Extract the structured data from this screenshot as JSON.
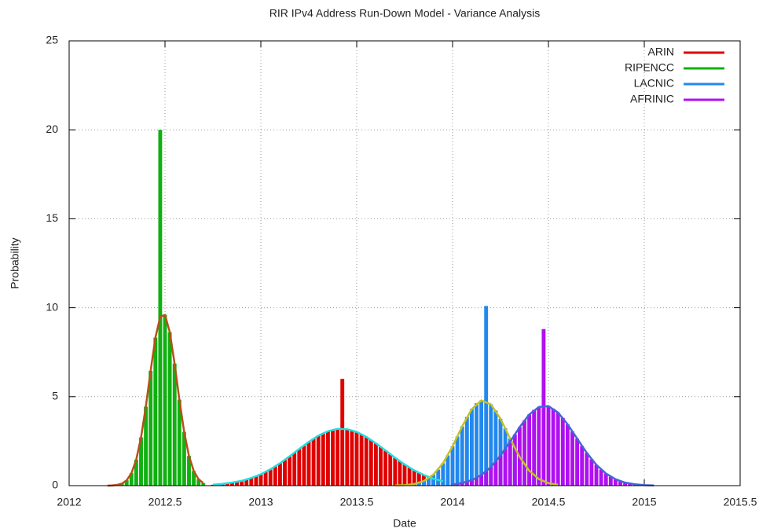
{
  "chart_data": {
    "type": "histogram",
    "title": "RIR IPv4 Address Run-Down Model - Variance Analysis",
    "xlabel": "Date",
    "ylabel": "Probability",
    "xlim": [
      2012,
      2015.5
    ],
    "xticks": [
      2012,
      2012.5,
      2013,
      2013.5,
      2014,
      2014.5,
      2015,
      2015.5
    ],
    "ylim": [
      0,
      25
    ],
    "yticks": [
      0,
      5,
      10,
      15,
      20,
      25
    ],
    "grid": true,
    "legend": "upper right",
    "series": [
      {
        "name": "ARIN",
        "color": "#e00000",
        "x": [
          2012.75,
          2012.775,
          2012.8,
          2012.825,
          2012.85,
          2012.875,
          2012.9,
          2012.925,
          2012.95,
          2012.975,
          2013,
          2013.025,
          2013.05,
          2013.075,
          2013.1,
          2013.125,
          2013.15,
          2013.175,
          2013.2,
          2013.225,
          2013.25,
          2013.275,
          2013.3,
          2013.325,
          2013.35,
          2013.375,
          2013.4,
          2013.425,
          2013.45,
          2013.475,
          2013.5,
          2013.525,
          2013.55,
          2013.575,
          2013.6,
          2013.625,
          2013.65,
          2013.675,
          2013.7,
          2013.725,
          2013.75,
          2013.775,
          2013.8,
          2013.825,
          2013.85,
          2013.875,
          2013.9,
          2013.925,
          2013.95
        ],
        "values": [
          0.05,
          0.07,
          0.1,
          0.13,
          0.17,
          0.22,
          0.27,
          0.35,
          0.43,
          0.53,
          0.64,
          0.77,
          0.92,
          1.08,
          1.26,
          1.45,
          1.65,
          1.85,
          2.06,
          2.26,
          2.46,
          2.64,
          2.81,
          2.95,
          3.06,
          3.14,
          3.19,
          6,
          3.17,
          3.11,
          3.02,
          2.9,
          2.74,
          2.57,
          2.38,
          2.18,
          1.98,
          1.77,
          1.57,
          1.37,
          1.19,
          1.02,
          0.86,
          0.72,
          0.6,
          0.49,
          0.39,
          0.31,
          0.25
        ],
        "fit": {
          "color": "#22dede",
          "x": [
            2012.75,
            2012.8,
            2012.85,
            2012.9,
            2012.95,
            2013,
            2013.05,
            2013.1,
            2013.15,
            2013.2,
            2013.25,
            2013.3,
            2013.35,
            2013.4,
            2013.45,
            2013.5,
            2013.55,
            2013.6,
            2013.65,
            2013.7,
            2013.75,
            2013.8,
            2013.85,
            2013.9,
            2013.95
          ],
          "values": [
            0.05,
            0.1,
            0.17,
            0.27,
            0.43,
            0.64,
            0.92,
            1.26,
            1.65,
            2.06,
            2.46,
            2.81,
            3.06,
            3.19,
            3.17,
            3.02,
            2.74,
            2.38,
            1.98,
            1.57,
            1.19,
            0.86,
            0.6,
            0.39,
            0.25
          ]
        }
      },
      {
        "name": "RIPENCC",
        "color": "#10b010",
        "x": [
          2012.2,
          2012.225,
          2012.25,
          2012.275,
          2012.3,
          2012.325,
          2012.35,
          2012.375,
          2012.4,
          2012.425,
          2012.45,
          2012.475,
          2012.5,
          2012.525,
          2012.55,
          2012.575,
          2012.6,
          2012.625,
          2012.65,
          2012.675,
          2012.7
        ],
        "values": [
          0,
          0.01,
          0.04,
          0.11,
          0.3,
          0.7,
          1.46,
          2.71,
          4.44,
          6.45,
          8.32,
          20,
          9.6,
          8.62,
          6.86,
          4.83,
          3.02,
          1.67,
          0.82,
          0.36,
          0.14
        ],
        "fit": {
          "color": "#b8501a",
          "x": [
            2012.2,
            2012.225,
            2012.25,
            2012.275,
            2012.3,
            2012.325,
            2012.35,
            2012.375,
            2012.4,
            2012.425,
            2012.45,
            2012.475,
            2012.5,
            2012.525,
            2012.55,
            2012.575,
            2012.6,
            2012.625,
            2012.65,
            2012.675,
            2012.7
          ],
          "values": [
            0,
            0.01,
            0.04,
            0.11,
            0.3,
            0.7,
            1.46,
            2.71,
            4.44,
            6.45,
            8.32,
            9.49,
            9.6,
            8.62,
            6.86,
            4.83,
            3.02,
            1.67,
            0.82,
            0.36,
            0.14
          ]
        }
      },
      {
        "name": "LACNIC",
        "color": "#2288ee",
        "x": [
          2013.7,
          2013.725,
          2013.75,
          2013.775,
          2013.8,
          2013.825,
          2013.85,
          2013.875,
          2013.9,
          2013.925,
          2013.95,
          2013.975,
          2014,
          2014.025,
          2014.05,
          2014.075,
          2014.1,
          2014.125,
          2014.15,
          2014.175,
          2014.2,
          2014.225,
          2014.25,
          2014.275,
          2014.3,
          2014.325,
          2014.35,
          2014.375,
          2014.4,
          2014.425,
          2014.45,
          2014.475,
          2014.5,
          2014.525,
          2014.55
        ],
        "values": [
          0.01,
          0.02,
          0.03,
          0.05,
          0.09,
          0.16,
          0.26,
          0.41,
          0.62,
          0.9,
          1.26,
          1.7,
          2.21,
          2.76,
          3.33,
          3.86,
          4.3,
          4.63,
          4.79,
          10.1,
          4.57,
          4.22,
          3.76,
          3.22,
          2.65,
          2.1,
          1.61,
          1.18,
          0.84,
          0.57,
          0.37,
          0.24,
          0.14,
          0.08,
          0.05
        ],
        "fit": {
          "color": "#c4c224",
          "x": [
            2013.7,
            2013.75,
            2013.8,
            2013.85,
            2013.9,
            2013.95,
            2014,
            2014.05,
            2014.1,
            2014.15,
            2014.2,
            2014.25,
            2014.3,
            2014.35,
            2014.4,
            2014.45,
            2014.5,
            2014.55
          ],
          "values": [
            0.01,
            0.03,
            0.09,
            0.26,
            0.62,
            1.26,
            2.21,
            3.33,
            4.3,
            4.79,
            4.57,
            3.76,
            2.65,
            1.61,
            0.84,
            0.37,
            0.14,
            0.05
          ]
        }
      },
      {
        "name": "AFRINIC",
        "color": "#b010f0",
        "x": [
          2014,
          2014.025,
          2014.05,
          2014.075,
          2014.1,
          2014.125,
          2014.15,
          2014.175,
          2014.2,
          2014.225,
          2014.25,
          2014.275,
          2014.3,
          2014.325,
          2014.35,
          2014.375,
          2014.4,
          2014.425,
          2014.45,
          2014.475,
          2014.5,
          2014.525,
          2014.55,
          2014.575,
          2014.6,
          2014.625,
          2014.65,
          2014.675,
          2014.7,
          2014.725,
          2014.75,
          2014.775,
          2014.8,
          2014.825,
          2014.85,
          2014.875,
          2014.9,
          2014.925,
          2014.95,
          2014.975,
          2015,
          2015.025,
          2015.05
        ],
        "values": [
          0.06,
          0.1,
          0.15,
          0.22,
          0.31,
          0.44,
          0.6,
          0.8,
          1.05,
          1.35,
          1.69,
          2.07,
          2.47,
          2.88,
          3.29,
          3.67,
          4,
          4.26,
          4.42,
          8.8,
          4.47,
          4.33,
          4.11,
          3.81,
          3.45,
          3.05,
          2.64,
          2.23,
          1.84,
          1.48,
          1.17,
          0.9,
          0.68,
          0.5,
          0.36,
          0.25,
          0.17,
          0.12,
          0.08,
          0.05,
          0.03,
          0.02,
          0.01
        ],
        "fit": {
          "color": "#4466d4",
          "x": [
            2014,
            2014.05,
            2014.1,
            2014.15,
            2014.2,
            2014.25,
            2014.3,
            2014.35,
            2014.4,
            2014.45,
            2014.5,
            2014.55,
            2014.6,
            2014.65,
            2014.7,
            2014.75,
            2014.8,
            2014.85,
            2014.9,
            2014.95,
            2015,
            2015.05
          ],
          "values": [
            0.06,
            0.15,
            0.31,
            0.6,
            1.05,
            1.69,
            2.47,
            3.29,
            4,
            4.42,
            4.47,
            4.11,
            3.45,
            2.64,
            1.84,
            1.17,
            0.68,
            0.36,
            0.17,
            0.08,
            0.03,
            0.01
          ]
        }
      }
    ]
  }
}
